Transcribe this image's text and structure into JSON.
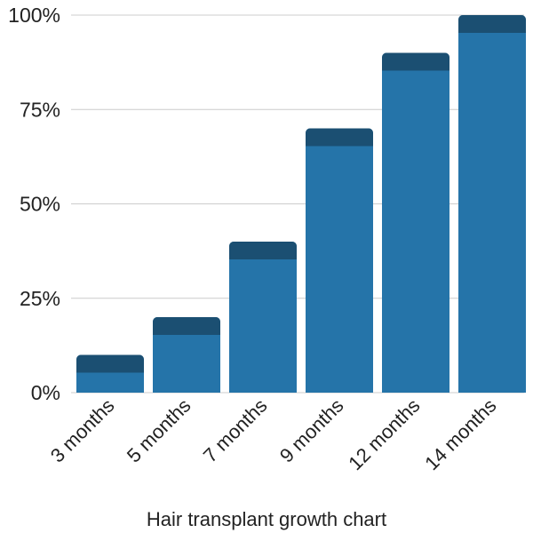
{
  "chart_data": {
    "type": "bar",
    "title": "",
    "xlabel": "Hair transplant growth chart",
    "ylabel": "",
    "categories": [
      "3 months",
      "5 months",
      "7 months",
      "9 months",
      "12 months",
      "14 months"
    ],
    "values": [
      10,
      20,
      40,
      70,
      90,
      100
    ],
    "ylim": [
      0,
      100
    ],
    "yticks": [
      0,
      25,
      50,
      75,
      100
    ],
    "ytick_labels": [
      "0%",
      "25%",
      "50%",
      "75%",
      "100%"
    ],
    "grid": true,
    "colors": {
      "bar": "#2574a9",
      "bar_cap": "#1b4f72",
      "grid": "#cccccc"
    }
  }
}
